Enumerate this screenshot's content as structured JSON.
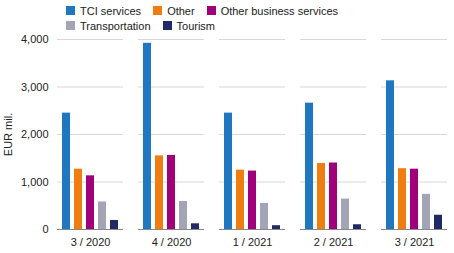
{
  "chart_data": {
    "type": "bar",
    "categories": [
      "3 / 2020",
      "4 / 2020",
      "1 / 2021",
      "2 / 2021",
      "3 / 2021"
    ],
    "series": [
      {
        "name": "TCI services",
        "color": "#1f77bf",
        "values": [
          2450,
          3920,
          2450,
          2660,
          3130
        ]
      },
      {
        "name": "Other",
        "color": "#f07d10",
        "values": [
          1270,
          1550,
          1250,
          1390,
          1280
        ]
      },
      {
        "name": "Other business services",
        "color": "#a0007a",
        "values": [
          1130,
          1560,
          1230,
          1400,
          1270
        ]
      },
      {
        "name": "Transportation",
        "color": "#a3a4b5",
        "values": [
          580,
          590,
          550,
          640,
          740
        ]
      },
      {
        "name": "Tourism",
        "color": "#1f2a66",
        "values": [
          190,
          120,
          80,
          100,
          300
        ]
      }
    ],
    "y_label": "EUR mil.",
    "ylim": [
      0,
      4000
    ],
    "yticks": [
      0,
      {
        "value": 1000,
        "label": "1,000"
      },
      {
        "value": 2000,
        "label": "2,000"
      },
      {
        "value": 3000,
        "label": "3,000"
      },
      {
        "value": 4000,
        "label": "4,000"
      }
    ],
    "grid": true,
    "legend": "top"
  }
}
